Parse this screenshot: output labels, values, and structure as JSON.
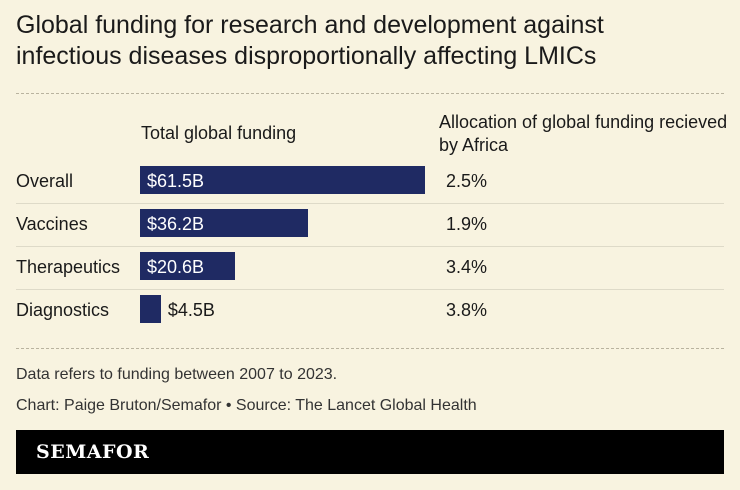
{
  "title": "Global funding for research and development against infectious diseases disproportionally affecting LMICs",
  "columns": {
    "funding": "Total global funding",
    "allocation": "Allocation of global funding recieved by Africa"
  },
  "chart_data": {
    "type": "bar",
    "categories": [
      "Overall",
      "Vaccines",
      "Therapeutics",
      "Diagnostics"
    ],
    "values": [
      61.5,
      36.2,
      20.6,
      4.5
    ],
    "value_labels": [
      "$61.5B",
      "$36.2B",
      "$20.6B",
      "$4.5B"
    ],
    "africa_share": [
      "2.5%",
      "1.9%",
      "3.4%",
      "3.8%"
    ],
    "bar_color": "#1f2a63",
    "xlim": [
      0,
      61.5
    ]
  },
  "notes": {
    "data_note": "Data refers to funding between 2007 to 2023.",
    "credit": "Chart: Paige Bruton/Semafor • Source: The Lancet Global Health"
  },
  "footer": {
    "logo": "SEMAFOR"
  }
}
